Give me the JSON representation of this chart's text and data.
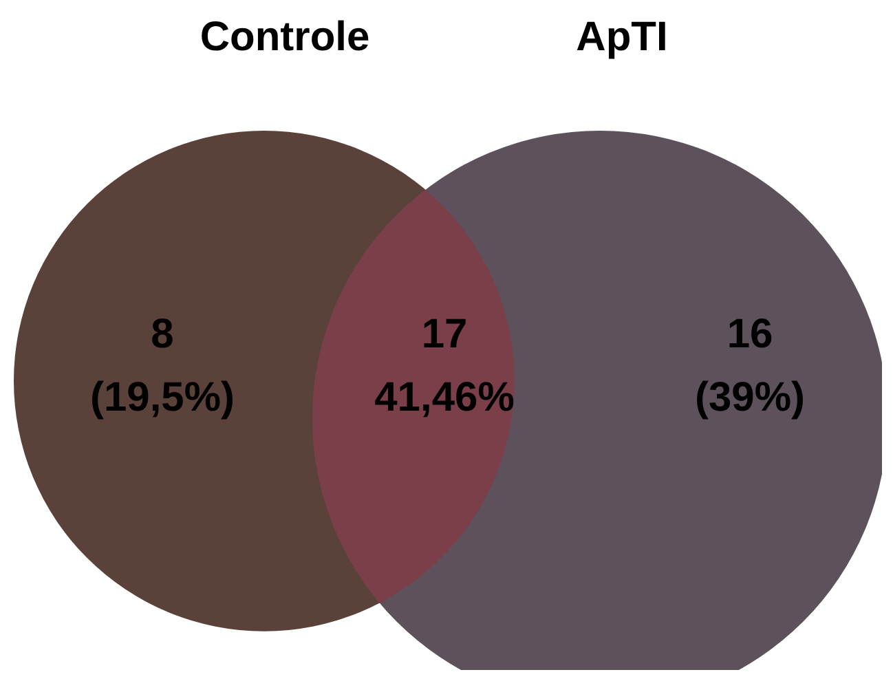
{
  "chart_data": {
    "type": "other",
    "categories": [
      "Controle",
      null,
      "ApTI"
    ],
    "values": [
      19.5,
      41.46,
      39
    ],
    "value_labels": [
      "8\n(19,5%)",
      "17\n41,46%",
      "16\n(39%)"
    ],
    "colors": [
      "#5a4139",
      "#7b3f49",
      "#5d525c"
    ]
  }
}
